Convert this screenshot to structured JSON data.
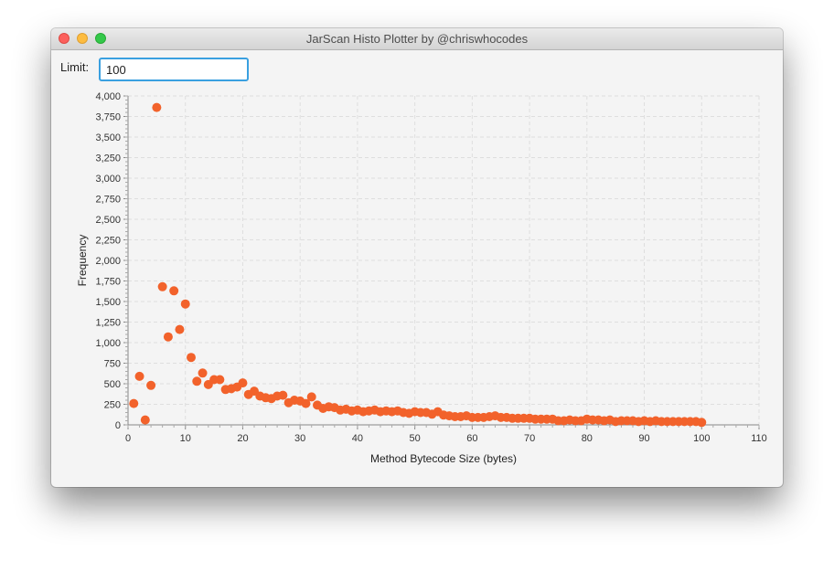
{
  "window": {
    "title": "JarScan Histo Plotter by @chriswhocodes"
  },
  "limit": {
    "label": "Limit:",
    "value": "100"
  },
  "colors": {
    "point": "#f2622b",
    "grid": "#dedede",
    "window_bg": "#f4f4f4"
  },
  "chart_data": {
    "type": "scatter",
    "title": "",
    "xlabel": "Method Bytecode Size (bytes)",
    "ylabel": "Frequency",
    "xlim": [
      0,
      110
    ],
    "ylim": [
      0,
      4000
    ],
    "xticks": [
      "0",
      "10",
      "20",
      "30",
      "40",
      "50",
      "60",
      "70",
      "80",
      "90",
      "100",
      "110"
    ],
    "yticks": [
      "0",
      "250",
      "500",
      "750",
      "1,000",
      "1,250",
      "1,500",
      "1,750",
      "2,000",
      "2,250",
      "2,500",
      "2,750",
      "3,000",
      "3,250",
      "3,500",
      "3,750",
      "4,000"
    ],
    "grid": true,
    "legend": "none",
    "x": [
      1,
      2,
      3,
      4,
      5,
      6,
      7,
      8,
      9,
      10,
      11,
      12,
      13,
      14,
      15,
      16,
      17,
      18,
      19,
      20,
      21,
      22,
      23,
      24,
      25,
      26,
      27,
      28,
      29,
      30,
      31,
      32,
      33,
      34,
      35,
      36,
      37,
      38,
      39,
      40,
      41,
      42,
      43,
      44,
      45,
      46,
      47,
      48,
      49,
      50,
      51,
      52,
      53,
      54,
      55,
      56,
      57,
      58,
      59,
      60,
      61,
      62,
      63,
      64,
      65,
      66,
      67,
      68,
      69,
      70,
      71,
      72,
      73,
      74,
      75,
      76,
      77,
      78,
      79,
      80,
      81,
      82,
      83,
      84,
      85,
      86,
      87,
      88,
      89,
      90,
      91,
      92,
      93,
      94,
      95,
      96,
      97,
      98,
      99,
      100
    ],
    "y": [
      260,
      590,
      60,
      480,
      3860,
      1680,
      1070,
      1630,
      1160,
      1470,
      820,
      530,
      630,
      490,
      550,
      550,
      430,
      440,
      460,
      510,
      370,
      410,
      350,
      330,
      320,
      350,
      360,
      270,
      300,
      290,
      260,
      340,
      240,
      200,
      220,
      210,
      180,
      190,
      170,
      180,
      160,
      170,
      180,
      160,
      170,
      160,
      170,
      150,
      140,
      160,
      150,
      150,
      130,
      160,
      120,
      110,
      100,
      100,
      110,
      90,
      90,
      90,
      100,
      110,
      90,
      90,
      80,
      80,
      80,
      80,
      70,
      70,
      70,
      70,
      50,
      50,
      60,
      50,
      50,
      70,
      60,
      60,
      50,
      60,
      40,
      50,
      50,
      50,
      40,
      50,
      40,
      50,
      40,
      40,
      40,
      40,
      40,
      40,
      40,
      30
    ]
  }
}
